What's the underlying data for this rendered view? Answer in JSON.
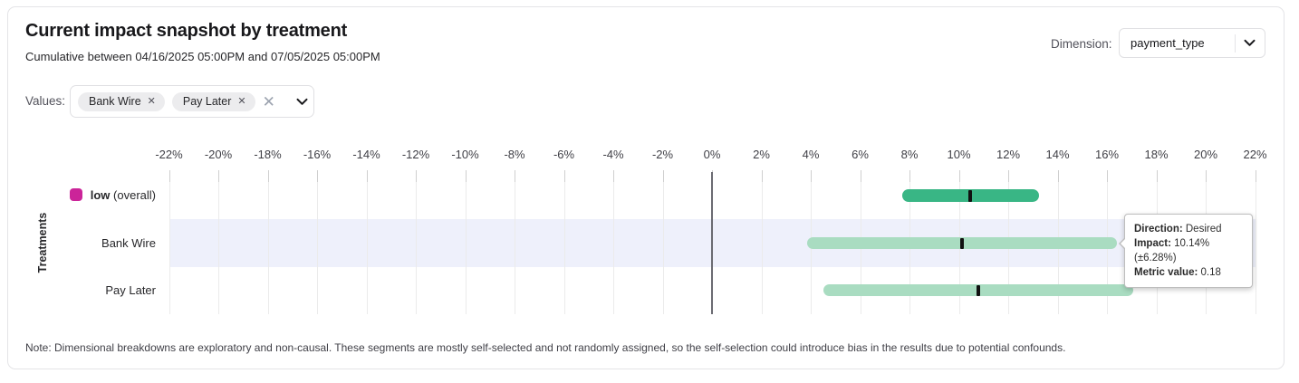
{
  "header": {
    "title": "Current impact snapshot by treatment",
    "subtitle": "Cumulative between 04/16/2025 05:00PM and 07/05/2025 05:00PM"
  },
  "dimension_control": {
    "label": "Dimension:",
    "value": "payment_type"
  },
  "values_control": {
    "label": "Values:",
    "chips": [
      {
        "label": "Bank Wire",
        "remove_icon": "✕"
      },
      {
        "label": "Pay Later",
        "remove_icon": "✕"
      }
    ],
    "clear_icon": "✕"
  },
  "tooltip": {
    "rows": [
      {
        "label": "Direction:",
        "value": "Desired"
      },
      {
        "label": "Impact:",
        "value": "10.14% (±6.28%)"
      },
      {
        "label": "Metric value:",
        "value": "0.18"
      }
    ]
  },
  "note": "Note: Dimensional breakdowns are exploratory and non-causal. These segments are mostly self-selected and not randomly assigned, so the self-selection could introduce bias in the results due to potential confounds.",
  "colors": {
    "overall_bar": "#39b685",
    "segment_bar": "#a9dcc1",
    "highlight_band": "#eef0fb",
    "legend_overall": "#cb2499"
  },
  "chart_data": {
    "type": "bar",
    "subtype": "horizontal_range_interval",
    "title": "Current impact snapshot by treatment",
    "xlabel": "",
    "ylabel": "Treatments",
    "x_axis": {
      "unit": "%",
      "min": -22,
      "max": 22,
      "tick_step": 2
    },
    "grid": true,
    "legend_overall_color": "#cb2499",
    "rows": [
      {
        "label": "low",
        "suffix": "(overall)",
        "kind": "overall",
        "impact_pct": 10.47,
        "margin_pct": 2.77,
        "ci_low_pct": 7.7,
        "ci_high_pct": 13.24,
        "highlighted": false
      },
      {
        "label": "Bank Wire",
        "kind": "segment",
        "impact_pct": 10.14,
        "margin_pct": 6.28,
        "ci_low_pct": 3.86,
        "ci_high_pct": 16.42,
        "highlighted": true,
        "direction": "Desired",
        "metric_value": 0.18
      },
      {
        "label": "Pay Later",
        "kind": "segment",
        "impact_pct": 10.78,
        "margin_pct": 6.27,
        "ci_low_pct": 4.51,
        "ci_high_pct": 17.05,
        "highlighted": false
      }
    ]
  }
}
